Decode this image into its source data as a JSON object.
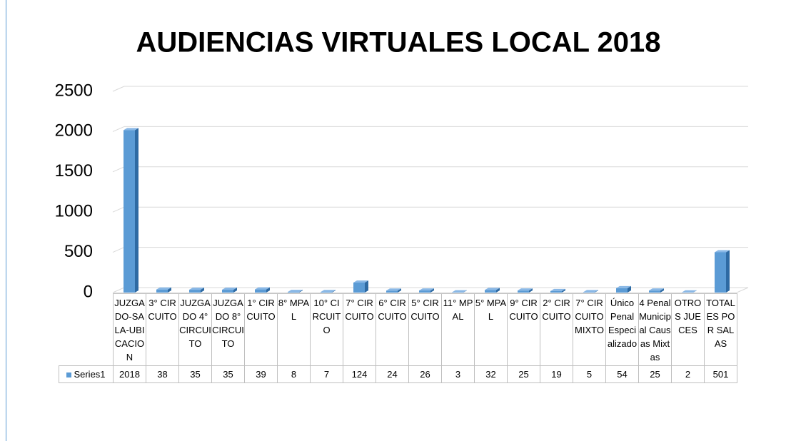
{
  "chart_data": {
    "type": "bar",
    "title": "AUDIENCIAS VIRTUALES LOCAL  2018",
    "categories": [
      "JUZGADO-SALA-UBICACION",
      "3° CIRCUITO",
      "JUZGADO 4° CIRCUITO",
      "JUZGADO 8° CIRCUITO",
      "1° CIRCUITO",
      "8° MPAL",
      "10° CIRCUITO",
      "7° CIRCUITO",
      "6° CIRCUITO",
      "5° CIRCUITO",
      "11° MPAL",
      "5° MPAL",
      "9° CIRCUITO",
      "2° CIRCUITO",
      "7° CIRCUITO MIXTO",
      "Único Penal Especializado",
      "4 Penal Municipal Causas Mixtas",
      "OTROS JUECES",
      "TOTALES POR SALAS"
    ],
    "series": [
      {
        "name": "Series1",
        "color": "#5b9bd5",
        "values": [
          2018,
          38,
          35,
          35,
          39,
          8,
          7,
          124,
          24,
          26,
          3,
          32,
          25,
          19,
          5,
          54,
          25,
          2,
          501
        ]
      }
    ],
    "ylim": [
      0,
      2500
    ],
    "yticks": [
      0,
      500,
      1000,
      1500,
      2000,
      2500
    ],
    "grid": true
  }
}
